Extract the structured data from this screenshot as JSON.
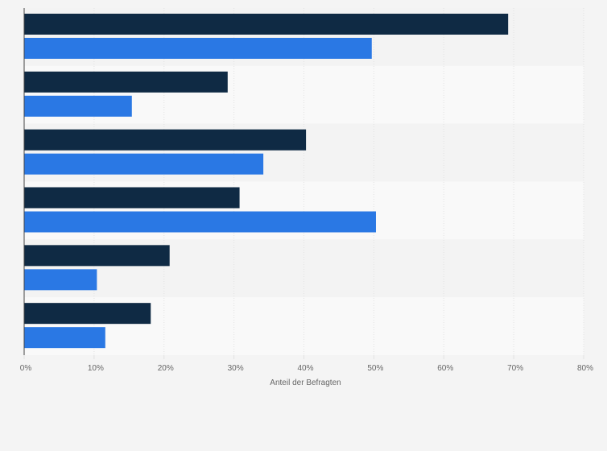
{
  "chart_data": {
    "type": "bar",
    "orientation": "horizontal",
    "xlabel": "Anteil der Befragten",
    "xlim": [
      0,
      80
    ],
    "xticks": [
      0,
      10,
      20,
      30,
      40,
      50,
      60,
      70,
      80
    ],
    "tick_suffix": "%",
    "grid": true,
    "legend": "none",
    "category_count": 6,
    "series": [
      {
        "color": "#0f2a44",
        "values": [
          69.2,
          29.1,
          40.3,
          30.8,
          20.8,
          18.1
        ]
      },
      {
        "color": "#2a78e4",
        "values": [
          49.7,
          15.4,
          34.2,
          50.3,
          10.4,
          11.6
        ]
      }
    ]
  },
  "colors": {
    "band_even": "#f3f3f3",
    "band_odd": "#f9f9f9",
    "grid": "#e2e2e2",
    "axis": "#444444",
    "text": "#666666"
  }
}
